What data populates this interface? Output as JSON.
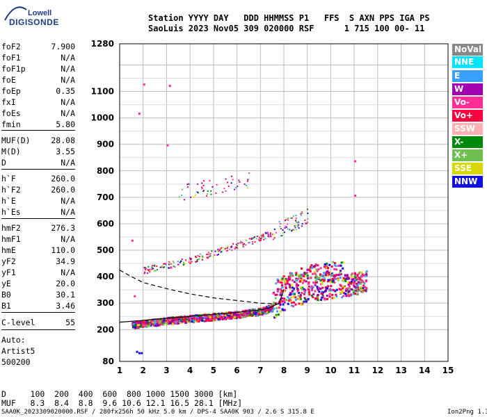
{
  "logo": {
    "line1": "Lowell",
    "line2": "DIGISONDE"
  },
  "header": {
    "line1": "Station YYYY DAY   DDD HHMMSS P1   FFS  S AXN PPS IGA PS",
    "line2": "SaoLuis 2023 Nov05 309 020000 RSF      1 715 100 00- 11"
  },
  "params": [
    {
      "k": "foF2",
      "v": "7.900"
    },
    {
      "k": "foF1",
      "v": "N/A"
    },
    {
      "k": "foF1p",
      "v": "N/A"
    },
    {
      "k": "foE",
      "v": "N/A"
    },
    {
      "k": "foEp",
      "v": "0.35"
    },
    {
      "k": "fxI",
      "v": "N/A"
    },
    {
      "k": "foEs",
      "v": "N/A"
    },
    {
      "k": "fmin",
      "v": "5.80"
    },
    {
      "k": "MUF(D)",
      "v": "28.08"
    },
    {
      "k": "M(D)",
      "v": "3.55"
    },
    {
      "k": "D",
      "v": "N/A"
    },
    {
      "k": "h`F",
      "v": "260.0"
    },
    {
      "k": "h`F2",
      "v": "260.0"
    },
    {
      "k": "h`E",
      "v": "N/A"
    },
    {
      "k": "h`Es",
      "v": "N/A"
    },
    {
      "k": "hmF2",
      "v": "276.3"
    },
    {
      "k": "hmF1",
      "v": "N/A"
    },
    {
      "k": "hmE",
      "v": "110.0"
    },
    {
      "k": "yF2",
      "v": "34.9"
    },
    {
      "k": "yF1",
      "v": "N/A"
    },
    {
      "k": "yE",
      "v": "20.0"
    },
    {
      "k": "B0",
      "v": "30.1"
    },
    {
      "k": "B1",
      "v": "3.46"
    },
    {
      "k": "C-level",
      "v": "55"
    }
  ],
  "auto": [
    "Auto:",
    "Artist5",
    "500200"
  ],
  "legend": [
    {
      "label": "NoVal",
      "color": "#888888"
    },
    {
      "label": "NNE",
      "color": "#00e5ff"
    },
    {
      "label": "E",
      "color": "#3aa0ff"
    },
    {
      "label": "W",
      "color": "#a000b0"
    },
    {
      "label": "Vo-",
      "color": "#ff2d95"
    },
    {
      "label": "Vo+",
      "color": "#ff0040"
    },
    {
      "label": "SSW",
      "color": "#ffb0b0"
    },
    {
      "label": "X-",
      "color": "#00880a"
    },
    {
      "label": "X+",
      "color": "#70c050"
    },
    {
      "label": "SSE",
      "color": "#d8d800"
    },
    {
      "label": "NNW",
      "color": "#1010e0"
    }
  ],
  "bottom": {
    "line1": "D     100  200  400  600  800 1000 1500 3000 [km]",
    "line2": "MUF   8.3  8.4  8.8  9.6 10.6 12.1 16.5 28.1 [MHz]"
  },
  "footer": {
    "left": "SAA0K_2023309020000.RSF / 280fx256h 50 kHz 5.0 km / DPS-4 SAA0K 903 / 2.6 S 315.8 E",
    "right": "Ion2Png 1.3.17"
  },
  "chart_data": {
    "type": "scatter",
    "x_ticks": [
      1,
      2,
      3,
      4,
      5,
      6,
      7,
      8,
      9,
      10,
      11,
      12,
      13,
      14,
      15
    ],
    "y_ticks": [
      80,
      200,
      300,
      400,
      500,
      600,
      700,
      800,
      900,
      1000,
      1100,
      1280
    ],
    "xlim": [
      1,
      15
    ],
    "ylim": [
      80,
      1280
    ],
    "grid": true,
    "traces": [
      {
        "name": "F2 trace",
        "x": [
          1.5,
          2,
          3,
          4,
          5,
          6,
          7,
          7.6,
          8,
          8.5,
          9,
          9.5,
          10,
          10.5,
          11,
          11.5
        ],
        "y": [
          215,
          222,
          232,
          240,
          248,
          256,
          268,
          285,
          300,
          320,
          335,
          345,
          350,
          355,
          365,
          375
        ]
      },
      {
        "name": "Second hop",
        "x": [
          2,
          3,
          4,
          5,
          6,
          7,
          7.5,
          8,
          8.5,
          9
        ],
        "y": [
          425,
          445,
          465,
          490,
          520,
          550,
          570,
          590,
          610,
          635
        ]
      }
    ],
    "lines": [
      {
        "name": "solid",
        "x": [
          1,
          2,
          3,
          4,
          5,
          6,
          7,
          7.4,
          7.8,
          8
        ],
        "y": [
          228,
          235,
          243,
          250,
          258,
          265,
          275,
          283,
          300,
          352
        ]
      },
      {
        "name": "dashed",
        "x": [
          1,
          1.5,
          2,
          3,
          4,
          5,
          6,
          7,
          7.5,
          7.8
        ],
        "y": [
          425,
          400,
          378,
          355,
          335,
          320,
          310,
          300,
          298,
          296
        ]
      }
    ]
  }
}
